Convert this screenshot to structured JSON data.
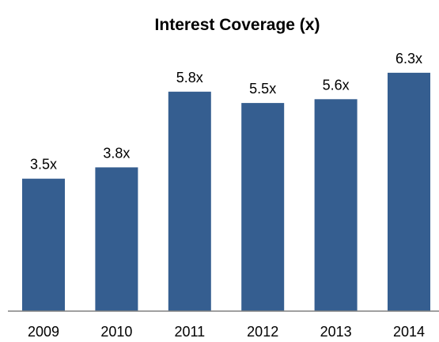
{
  "chart_data": {
    "type": "bar",
    "title": "Interest Coverage (x)",
    "xlabel": "",
    "ylabel": "",
    "categories": [
      "2009",
      "2010",
      "2011",
      "2012",
      "2013",
      "2014"
    ],
    "values": [
      3.5,
      3.8,
      5.8,
      5.5,
      5.6,
      6.3
    ],
    "data_labels": [
      "3.5x",
      "3.8x",
      "5.8x",
      "5.5x",
      "5.6x",
      "6.3x"
    ],
    "ylim": [
      0,
      7
    ],
    "grid": false,
    "legend": "none",
    "bar_color": "#355E90",
    "axis_color": "#808080"
  }
}
